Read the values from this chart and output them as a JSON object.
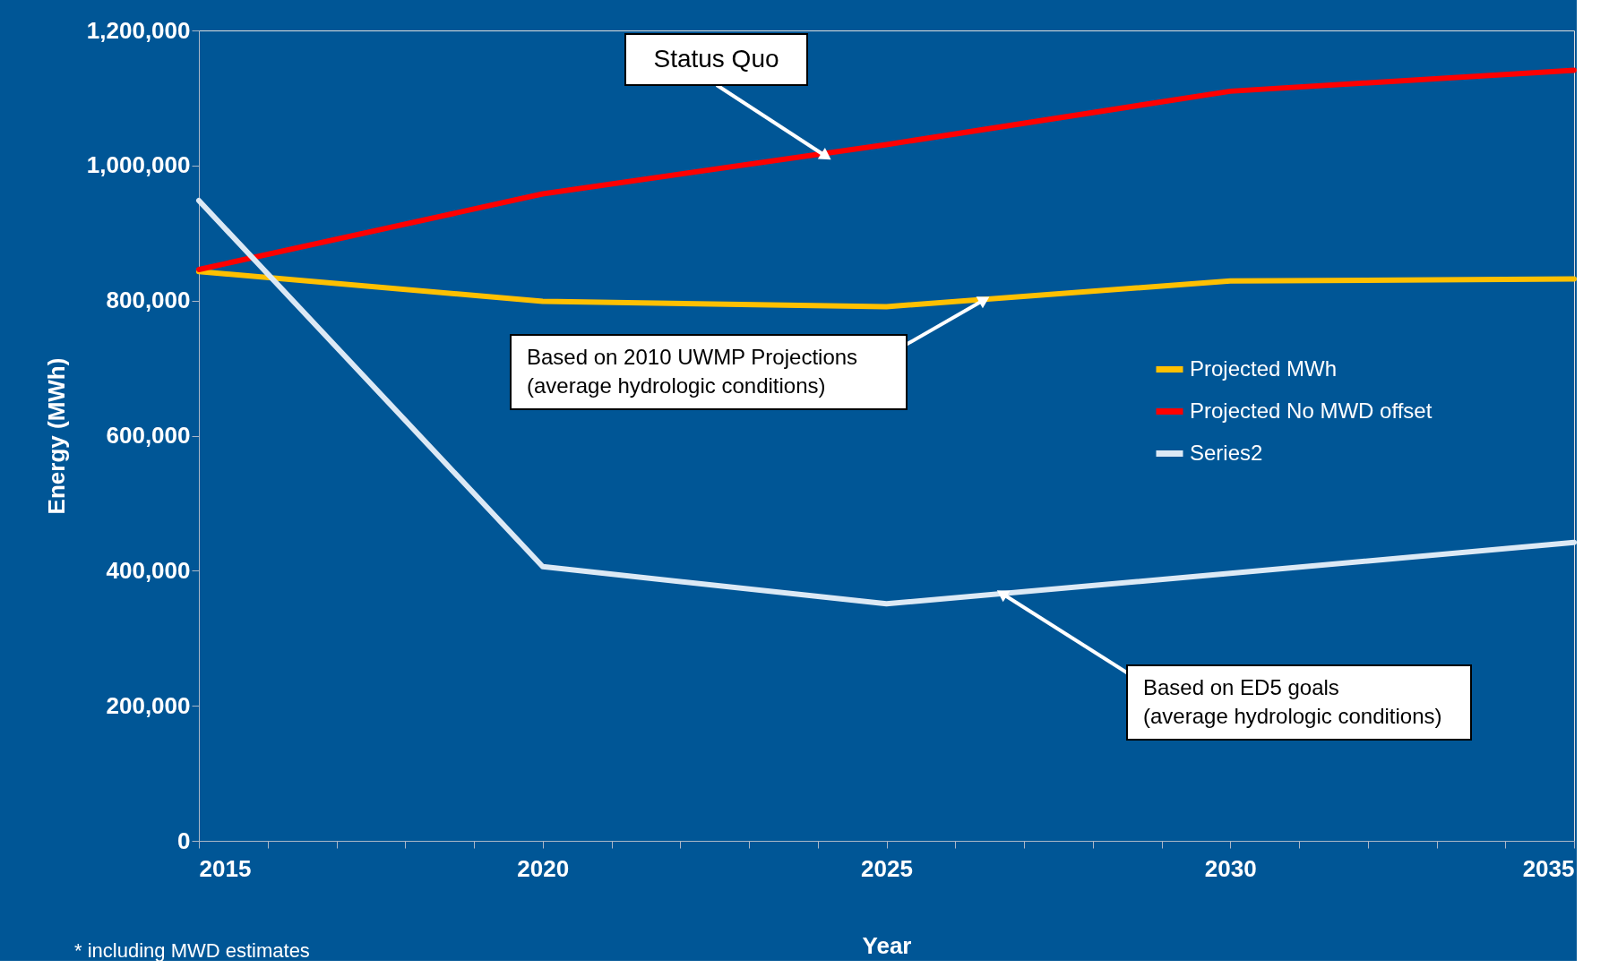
{
  "chart_data": {
    "type": "line",
    "xlabel": "Year",
    "ylabel": "Energy  (MWh)",
    "x": [
      2015,
      2020,
      2025,
      2030,
      2035
    ],
    "series": [
      {
        "name": "Projected MWh",
        "color": "#ffc000",
        "values": [
          843000,
          799000,
          791000,
          829000,
          832000
        ]
      },
      {
        "name": "Projected No MWD offset",
        "color": "#ff0000",
        "values": [
          846000,
          958000,
          1031000,
          1110000,
          1141000
        ]
      },
      {
        "name": "Series2",
        "color": "#dce9f5",
        "values": [
          948000,
          406000,
          351000,
          396000,
          442000
        ]
      }
    ],
    "xlim": [
      2015,
      2035
    ],
    "xticks": [
      2015,
      {
        "value": 2016,
        "label": null
      },
      {
        "value": 2017,
        "label": null
      },
      {
        "value": 2018,
        "label": null
      },
      {
        "value": 2019,
        "label": null
      },
      2020,
      {
        "value": 2021,
        "label": null
      },
      {
        "value": 2022,
        "label": null
      },
      {
        "value": 2023,
        "label": null
      },
      {
        "value": 2024,
        "label": null
      },
      2025,
      {
        "value": 2026,
        "label": null
      },
      {
        "value": 2027,
        "label": null
      },
      {
        "value": 2028,
        "label": null
      },
      {
        "value": 2029,
        "label": null
      },
      2030,
      {
        "value": 2031,
        "label": null
      },
      {
        "value": 2032,
        "label": null
      },
      {
        "value": 2033,
        "label": null
      },
      {
        "value": 2034,
        "label": null
      },
      2035
    ],
    "ylim": [
      0,
      1200000
    ],
    "yticks": [
      0,
      {
        "value": 200000,
        "label": "200,000"
      },
      {
        "value": 400000,
        "label": "400,000"
      },
      {
        "value": 600000,
        "label": "600,000"
      },
      {
        "value": 800000,
        "label": "800,000"
      },
      {
        "value": 1000000,
        "label": "1,000,000"
      },
      {
        "value": 1200000,
        "label": "1,200,000"
      }
    ],
    "grid": false,
    "legend": "right",
    "marker": "none",
    "line_style": "solid",
    "annotations": [
      {
        "text": "Status Quo",
        "x": 2024.1,
        "y": 1015000
      },
      {
        "text": "Based on 2010 UWMP Projections\n(average hydrologic conditions)",
        "x": 2026.4,
        "y": 800000
      },
      {
        "text": "Based on ED5 goals\n(average hydrologic conditions)",
        "x": 2026.7,
        "y": 365000
      },
      "* including MWD estimates"
    ]
  }
}
